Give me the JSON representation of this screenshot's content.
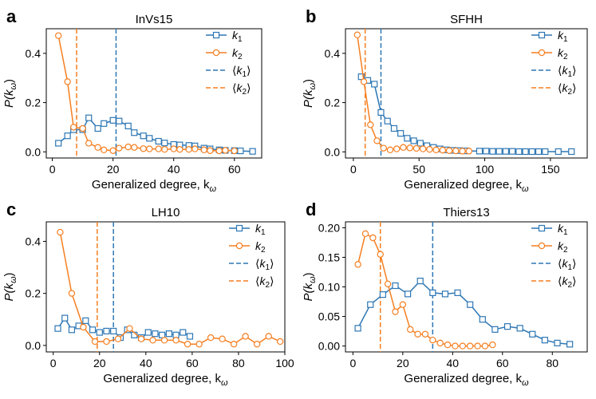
{
  "figure": {
    "colors": {
      "k1": "#2e77b4",
      "k2": "#f57f20"
    }
  },
  "chart_data": [
    {
      "type": "line",
      "panel_label": "a",
      "title": "InVs15",
      "xlabel": "Generalized degree, k",
      "xlabel_sub": "ω",
      "ylabel": "P(k",
      "ylabel_sub": "ω",
      "ylabel_close": ")",
      "xlim": [
        -2,
        69
      ],
      "ylim": [
        -0.025,
        0.5
      ],
      "xticks": [
        0,
        20,
        40,
        60
      ],
      "xtick_labels": [
        "0",
        "20",
        "40",
        "60"
      ],
      "yticks": [
        0.0,
        0.2,
        0.4
      ],
      "ytick_labels": [
        "0.0",
        "0.2",
        "0.4"
      ],
      "legend_position": "top-right",
      "legend": [
        {
          "key": "k1",
          "kind": "series",
          "label": "k",
          "sub": "1",
          "pre": "",
          "post": ""
        },
        {
          "key": "k2",
          "kind": "series",
          "label": "k",
          "sub": "2",
          "pre": "",
          "post": ""
        },
        {
          "key": "k1",
          "kind": "mean",
          "label": "k",
          "sub": "1",
          "pre": "⟨",
          "post": "⟩"
        },
        {
          "key": "k2",
          "kind": "mean",
          "label": "k",
          "sub": "2",
          "pre": "⟨",
          "post": "⟩"
        }
      ],
      "series": [
        {
          "name": "k1",
          "marker": "square",
          "x": [
            2,
            5,
            7,
            10,
            12,
            15,
            17,
            20,
            22,
            25,
            27,
            30,
            32,
            35,
            37,
            40,
            42,
            45,
            47,
            50,
            52,
            55,
            57,
            60,
            62,
            66
          ],
          "y": [
            0.035,
            0.065,
            0.09,
            0.09,
            0.138,
            0.095,
            0.115,
            0.128,
            0.125,
            0.105,
            0.078,
            0.065,
            0.055,
            0.043,
            0.036,
            0.03,
            0.028,
            0.026,
            0.024,
            0.015,
            0.012,
            0.008,
            0.006,
            0.005,
            0.004,
            0.002
          ]
        },
        {
          "name": "k2",
          "marker": "circle",
          "x": [
            2,
            5,
            7,
            10,
            12,
            15,
            17,
            20,
            22,
            25,
            27,
            30,
            32,
            35,
            37,
            40,
            42,
            45,
            47,
            50,
            52,
            55,
            57,
            60
          ],
          "y": [
            0.472,
            0.285,
            0.1,
            0.095,
            0.035,
            0.018,
            0.008,
            0.005,
            0.015,
            0.02,
            0.018,
            0.013,
            0.012,
            0.012,
            0.01,
            0.012,
            0.01,
            0.01,
            0.012,
            0.008,
            0.005,
            0.004,
            0.006,
            0.004
          ]
        }
      ],
      "means": [
        {
          "name": "k1",
          "value": 21
        },
        {
          "name": "k2",
          "value": 8
        }
      ]
    },
    {
      "type": "line",
      "panel_label": "b",
      "title": "SFHH",
      "xlabel": "Generalized degree, k",
      "xlabel_sub": "ω",
      "ylabel": "P(k",
      "ylabel_sub": "ω",
      "ylabel_close": ")",
      "xlim": [
        -6,
        178
      ],
      "ylim": [
        -0.025,
        0.5
      ],
      "xticks": [
        0,
        50,
        100,
        150
      ],
      "xtick_labels": [
        "0",
        "50",
        "100",
        "150"
      ],
      "yticks": [
        0.0,
        0.2,
        0.4
      ],
      "ytick_labels": [
        "0.0",
        "0.2",
        "0.4"
      ],
      "legend_position": "top-right",
      "legend": [
        {
          "key": "k1",
          "kind": "series",
          "label": "k",
          "sub": "1",
          "pre": "",
          "post": ""
        },
        {
          "key": "k2",
          "kind": "series",
          "label": "k",
          "sub": "2",
          "pre": "",
          "post": ""
        },
        {
          "key": "k1",
          "kind": "mean",
          "label": "k",
          "sub": "1",
          "pre": "⟨",
          "post": "⟩"
        },
        {
          "key": "k2",
          "kind": "mean",
          "label": "k",
          "sub": "2",
          "pre": "⟨",
          "post": "⟩"
        }
      ],
      "series": [
        {
          "name": "k1",
          "marker": "square",
          "x": [
            6,
            11,
            16,
            21,
            26,
            31,
            36,
            41,
            46,
            51,
            56,
            61,
            66,
            71,
            76,
            81,
            86,
            96,
            101,
            106,
            111,
            116,
            121,
            126,
            131,
            136,
            141,
            146,
            156,
            166
          ],
          "y": [
            0.305,
            0.29,
            0.275,
            0.16,
            0.125,
            0.095,
            0.075,
            0.055,
            0.045,
            0.035,
            0.025,
            0.018,
            0.012,
            0.008,
            0.006,
            0.005,
            0.004,
            0.003,
            0.003,
            0.002,
            0.002,
            0.002,
            0.002,
            0.001,
            0.001,
            0.001,
            0.001,
            0.001,
            0.001,
            0.001
          ]
        },
        {
          "name": "k2",
          "marker": "circle",
          "x": [
            3,
            8,
            13,
            18,
            23,
            28,
            33,
            38,
            43,
            48,
            53,
            58,
            63,
            68,
            73,
            78,
            83,
            88
          ],
          "y": [
            0.475,
            0.285,
            0.11,
            0.045,
            0.015,
            0.008,
            0.012,
            0.018,
            0.016,
            0.014,
            0.012,
            0.01,
            0.008,
            0.007,
            0.005,
            0.004,
            0.003,
            0.003
          ]
        }
      ],
      "means": [
        {
          "name": "k1",
          "value": 21
        },
        {
          "name": "k2",
          "value": 9
        }
      ]
    },
    {
      "type": "line",
      "panel_label": "c",
      "title": "LH10",
      "xlabel": "Generalized degree, k",
      "xlabel_sub": "ω",
      "ylabel": "P(k",
      "ylabel_sub": "ω",
      "ylabel_close": ")",
      "xlim": [
        -3,
        100
      ],
      "ylim": [
        -0.025,
        0.475
      ],
      "xticks": [
        0,
        20,
        40,
        60,
        80,
        100
      ],
      "xtick_labels": [
        "0",
        "20",
        "40",
        "60",
        "80",
        "100"
      ],
      "yticks": [
        0.0,
        0.2,
        0.4
      ],
      "ytick_labels": [
        "0.0",
        "0.2",
        "0.4"
      ],
      "legend_position": "top-right",
      "legend": [
        {
          "key": "k1",
          "kind": "series",
          "label": "k",
          "sub": "1",
          "pre": "",
          "post": ""
        },
        {
          "key": "k2",
          "kind": "series",
          "label": "k",
          "sub": "2",
          "pre": "",
          "post": ""
        },
        {
          "key": "k1",
          "kind": "mean",
          "label": "k",
          "sub": "1",
          "pre": "⟨",
          "post": "⟩"
        },
        {
          "key": "k2",
          "kind": "mean",
          "label": "k",
          "sub": "2",
          "pre": "⟨",
          "post": "⟩"
        }
      ],
      "series": [
        {
          "name": "k1",
          "marker": "square",
          "x": [
            2,
            5,
            8,
            11,
            14,
            17,
            20,
            23,
            26,
            29,
            32,
            35,
            38,
            41,
            44,
            47,
            50,
            53,
            56,
            59
          ],
          "y": [
            0.065,
            0.105,
            0.06,
            0.075,
            0.095,
            0.06,
            0.05,
            0.055,
            0.055,
            0.03,
            0.06,
            0.04,
            0.03,
            0.05,
            0.045,
            0.04,
            0.045,
            0.04,
            0.05,
            0.035
          ]
        },
        {
          "name": "k2",
          "marker": "circle",
          "x": [
            3,
            8,
            13,
            18,
            23,
            28,
            33,
            38,
            43,
            48,
            53,
            58,
            63,
            68,
            73,
            78,
            83,
            88,
            93,
            98
          ],
          "y": [
            0.435,
            0.2,
            0.07,
            0.015,
            0.015,
            0.025,
            0.065,
            0.025,
            0.02,
            0.02,
            0.02,
            0.005,
            0.005,
            0.03,
            0.025,
            0.005,
            0.035,
            0.005,
            0.035,
            0.015
          ]
        }
      ],
      "means": [
        {
          "name": "k1",
          "value": 26
        },
        {
          "name": "k2",
          "value": 19
        }
      ]
    },
    {
      "type": "line",
      "panel_label": "d",
      "title": "Thiers13",
      "xlabel": "Generalized degree, k",
      "xlabel_sub": "ω",
      "ylabel": "P(k",
      "ylabel_sub": "ω",
      "ylabel_close": ")",
      "xlim": [
        -3,
        94
      ],
      "ylim": [
        -0.01,
        0.21
      ],
      "xticks": [
        0,
        20,
        40,
        60,
        80
      ],
      "xtick_labels": [
        "0",
        "20",
        "40",
        "60",
        "80"
      ],
      "yticks": [
        0.0,
        0.05,
        0.1,
        0.15,
        0.2
      ],
      "ytick_labels": [
        "0.00",
        "0.05",
        "0.10",
        "0.15",
        "0.20"
      ],
      "legend_position": "top-right",
      "legend": [
        {
          "key": "k1",
          "kind": "series",
          "label": "k",
          "sub": "1",
          "pre": "",
          "post": ""
        },
        {
          "key": "k2",
          "kind": "series",
          "label": "k",
          "sub": "2",
          "pre": "",
          "post": ""
        },
        {
          "key": "k1",
          "kind": "mean",
          "label": "k",
          "sub": "1",
          "pre": "⟨",
          "post": "⟩"
        },
        {
          "key": "k2",
          "kind": "mean",
          "label": "k",
          "sub": "2",
          "pre": "⟨",
          "post": "⟩"
        }
      ],
      "series": [
        {
          "name": "k1",
          "marker": "square",
          "x": [
            2,
            7,
            12,
            17,
            22,
            27,
            32,
            37,
            42,
            47,
            52,
            57,
            62,
            67,
            72,
            77,
            82,
            87
          ],
          "y": [
            0.03,
            0.07,
            0.087,
            0.102,
            0.088,
            0.11,
            0.09,
            0.088,
            0.09,
            0.07,
            0.045,
            0.028,
            0.033,
            0.03,
            0.02,
            0.01,
            0.005,
            0.003
          ]
        },
        {
          "name": "k2",
          "marker": "circle",
          "x": [
            2,
            5,
            8,
            11,
            14,
            17,
            20,
            23,
            26,
            29,
            32,
            35,
            38,
            41,
            44,
            47,
            50,
            53,
            56
          ],
          "y": [
            0.138,
            0.19,
            0.183,
            0.155,
            0.105,
            0.058,
            0.07,
            0.028,
            0.02,
            0.02,
            0.01,
            0.005,
            0.002,
            0.0,
            0.0,
            0.0,
            0.0,
            0.0,
            0.002
          ]
        }
      ],
      "means": [
        {
          "name": "k1",
          "value": 32
        },
        {
          "name": "k2",
          "value": 11
        }
      ]
    }
  ]
}
